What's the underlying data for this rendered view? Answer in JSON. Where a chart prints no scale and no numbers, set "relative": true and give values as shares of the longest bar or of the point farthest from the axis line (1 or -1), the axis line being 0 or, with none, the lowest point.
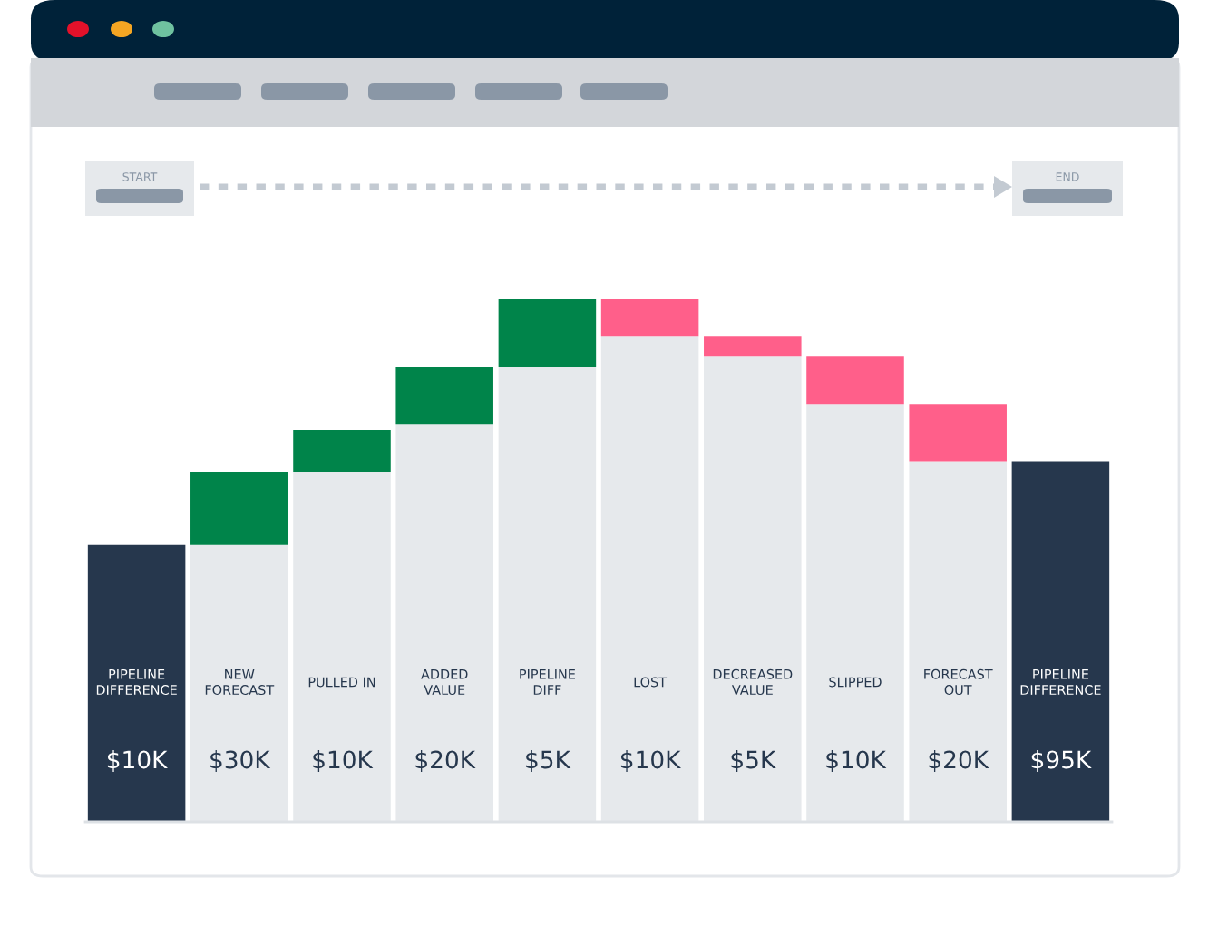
{
  "chart_data": {
    "type": "bar",
    "relative": true,
    "stacked": true,
    "categories": [
      "PIPELINE\nDIFFERENCE",
      "NEW\nFORECAST",
      "PULLED IN",
      "ADDED\nVALUE",
      "PIPELINE\nDIFF",
      "LOST",
      "DECREASED\nVALUE",
      "SLIPPED",
      "FORECAST\nOUT",
      "PIPELINE\nDIFFERENCE"
    ],
    "series": [
      {
        "color": "#e6e9ec",
        "values": [
          null,
          0.53,
          0.67,
          0.76,
          0.87,
          0.93,
          0.89,
          0.8,
          0.69,
          null
        ]
      },
      {
        "colors": [
          "#26374d",
          "#00844a",
          "#00844a",
          "#00844a",
          "#00844a",
          "#ff5f8a",
          "#ff5f8a",
          "#ff5f8a",
          "#ff5f8a",
          "#26374d"
        ],
        "values": [
          0.53,
          0.14,
          0.08,
          0.11,
          0.13,
          0.07,
          0.04,
          0.09,
          0.11,
          0.69
        ]
      }
    ],
    "annotations": [
      "START",
      "END",
      "$10K",
      "$30K",
      "$10K",
      "$20K",
      "$5K",
      "$10K",
      "$5K",
      "$10K",
      "$20K",
      "$95K"
    ]
  }
}
